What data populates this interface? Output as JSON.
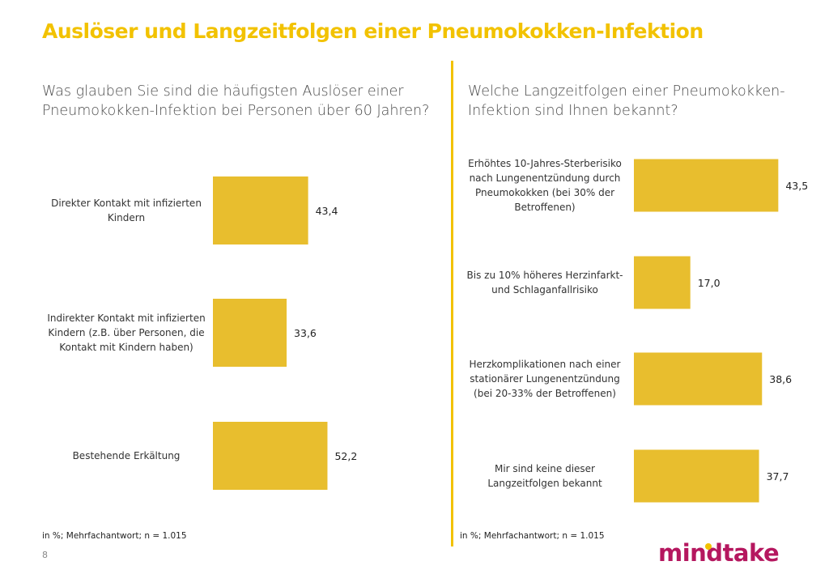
{
  "title": "Auslöser und Langzeitfolgen einer Pneumokokken-Infektion",
  "logo": "mindtake",
  "page_number": "8",
  "colors": {
    "accent": "#F2C200",
    "bar": "#E8BE2E",
    "brand": "#b5175f"
  },
  "chart_data": [
    {
      "type": "bar",
      "orientation": "horizontal",
      "title": "Was glauben Sie sind die häufigsten Auslöser einer Pneumokokken-Infektion bei Personen über 60 Jahren?",
      "categories": [
        [
          "Direkter Kontakt mit infizierten",
          "Kindern"
        ],
        [
          "Indirekter Kontakt mit infizierten",
          "Kindern (z.B. über Personen, die",
          "Kontakt mit Kindern haben)"
        ],
        [
          "Bestehende Erkältung"
        ]
      ],
      "values": [
        43.4,
        33.6,
        52.2
      ],
      "value_labels": [
        "43,4",
        "33,6",
        "52,2"
      ],
      "footnote": "in %; Mehrfachantwort;  n = 1.015"
    },
    {
      "type": "bar",
      "orientation": "horizontal",
      "title": "Welche Langzeitfolgen einer Pneumokokken-Infektion sind Ihnen bekannt?",
      "categories": [
        [
          "Erhöhtes 10-Jahres-Sterberisiko",
          "nach Lungenentzündung durch",
          "Pneumokokken (bei 30% der",
          "Betroffenen)"
        ],
        [
          "Bis zu 10% höheres Herzinfarkt-",
          "und Schlaganfallrisiko"
        ],
        [
          "Herzkomplikationen nach einer",
          "stationärer Lungenentzündung",
          "(bei 20-33% der Betroffenen)"
        ],
        [
          "Mir sind keine dieser",
          "Langzeitfolgen bekannt"
        ]
      ],
      "values": [
        43.5,
        17.0,
        38.6,
        37.7
      ],
      "value_labels": [
        "43,5",
        "17,0",
        "38,6",
        "37,7"
      ],
      "footnote": "in %; Mehrfachantwort;  n = 1.015"
    }
  ]
}
